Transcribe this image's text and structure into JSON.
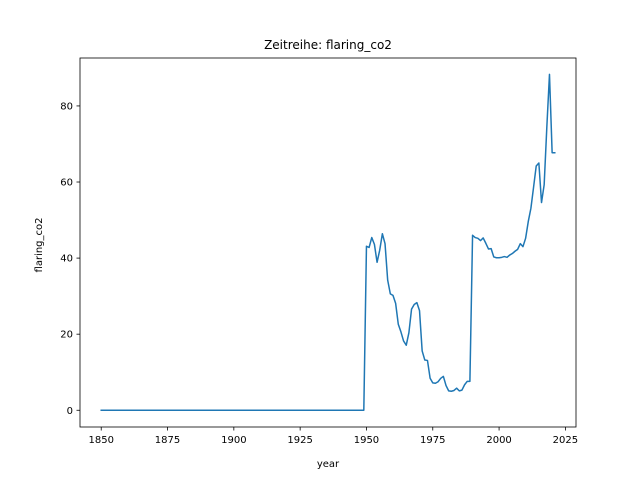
{
  "chart_data": {
    "type": "line",
    "title": "Zeitreihe: flaring_co2",
    "xlabel": "year",
    "ylabel": "flaring_co2",
    "xlim": [
      1842,
      2029
    ],
    "ylim": [
      -4.4,
      92.6
    ],
    "xticks": [
      1850,
      1875,
      1900,
      1925,
      1950,
      1975,
      2000,
      2025
    ],
    "yticks": [
      0,
      20,
      40,
      60,
      80
    ],
    "grid": false,
    "line_color": "#1f77b4",
    "series": [
      {
        "x": [
          1850,
          1949,
          1950,
          1951,
          1952,
          1953,
          1954,
          1955,
          1956,
          1957,
          1958,
          1959,
          1960,
          1961,
          1962,
          1963,
          1964,
          1965,
          1966,
          1967,
          1968,
          1969,
          1970,
          1971,
          1972,
          1973,
          1974,
          1975,
          1976,
          1977,
          1978,
          1979,
          1980,
          1981,
          1982,
          1983,
          1984,
          1985,
          1986,
          1987,
          1988,
          1989,
          1990,
          1991,
          1992,
          1993,
          1994,
          1995,
          1996,
          1997,
          1998,
          1999,
          2000,
          2001,
          2002,
          2003,
          2004,
          2005,
          2006,
          2007,
          2008,
          2009,
          2010,
          2011,
          2012,
          2013,
          2014,
          2015,
          2016,
          2017,
          2018,
          2019,
          2020,
          2021
        ],
        "y": [
          0,
          0,
          43.1,
          42.8,
          45.4,
          43.6,
          38.9,
          42.1,
          46.4,
          43.8,
          34.2,
          30.6,
          30.2,
          28.1,
          22.6,
          20.6,
          18.2,
          17.1,
          20.4,
          26.6,
          27.8,
          28.3,
          26.2,
          15.6,
          13.2,
          13.1,
          8.4,
          7.2,
          7.1,
          7.5,
          8.4,
          8.9,
          6.5,
          5.1,
          5.0,
          5.2,
          5.8,
          5.1,
          5.3,
          6.7,
          7.6,
          7.6,
          46.0,
          45.4,
          45.2,
          44.6,
          45.3,
          43.9,
          42.4,
          42.5,
          40.3,
          40.1,
          40.1,
          40.2,
          40.4,
          40.2,
          40.8,
          41.2,
          41.8,
          42.3,
          43.8,
          43.0,
          45.2,
          49.6,
          53.1,
          58.6,
          64.2,
          65.0,
          54.6,
          59.3,
          74.4,
          88.3,
          67.7,
          67.7
        ]
      }
    ]
  }
}
